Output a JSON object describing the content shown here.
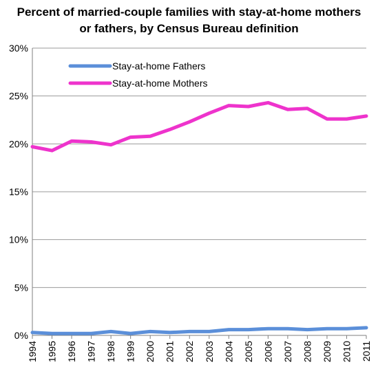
{
  "chart_data": {
    "type": "line",
    "title_lines": [
      "Percent of married-couple families with stay-at-home mothers",
      "or fathers, by Census Bureau definition"
    ],
    "x": [
      "1994",
      "1995",
      "1996",
      "1997",
      "1998",
      "1999",
      "2000",
      "2001",
      "2002",
      "2003",
      "2004",
      "2005",
      "2006",
      "2007",
      "2008",
      "2009",
      "2010",
      "2011"
    ],
    "y_ticks": [
      "0%",
      "5%",
      "10%",
      "15%",
      "20%",
      "25%",
      "30%"
    ],
    "ylim": [
      0,
      30
    ],
    "grid": true,
    "legend_position": "top-left",
    "series": [
      {
        "name": "Stay-at-home Fathers",
        "color": "#5b8fd9",
        "values": [
          0.3,
          0.2,
          0.2,
          0.2,
          0.4,
          0.2,
          0.4,
          0.3,
          0.4,
          0.4,
          0.6,
          0.6,
          0.7,
          0.7,
          0.6,
          0.7,
          0.7,
          0.8
        ]
      },
      {
        "name": "Stay-at-home Mothers",
        "color": "#ee33cc",
        "values": [
          19.7,
          19.3,
          20.3,
          20.2,
          19.9,
          20.7,
          20.8,
          21.5,
          22.3,
          23.2,
          24.0,
          23.9,
          24.3,
          23.6,
          23.7,
          22.6,
          22.6,
          22.9
        ]
      }
    ]
  }
}
